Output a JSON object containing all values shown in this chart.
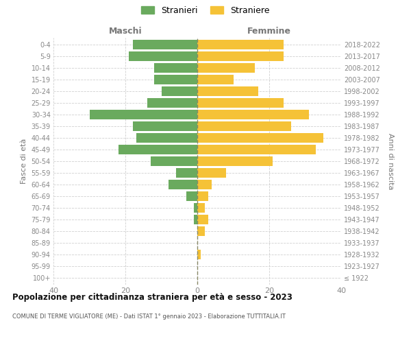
{
  "age_groups": [
    "100+",
    "95-99",
    "90-94",
    "85-89",
    "80-84",
    "75-79",
    "70-74",
    "65-69",
    "60-64",
    "55-59",
    "50-54",
    "45-49",
    "40-44",
    "35-39",
    "30-34",
    "25-29",
    "20-24",
    "15-19",
    "10-14",
    "5-9",
    "0-4"
  ],
  "birth_years": [
    "≤ 1922",
    "1923-1927",
    "1928-1932",
    "1933-1937",
    "1938-1942",
    "1943-1947",
    "1948-1952",
    "1953-1957",
    "1958-1962",
    "1963-1967",
    "1968-1972",
    "1973-1977",
    "1978-1982",
    "1983-1987",
    "1988-1992",
    "1993-1997",
    "1998-2002",
    "2003-2007",
    "2008-2012",
    "2013-2017",
    "2018-2022"
  ],
  "maschi": [
    0,
    0,
    0,
    0,
    0,
    1,
    1,
    3,
    8,
    6,
    13,
    22,
    17,
    18,
    30,
    14,
    10,
    12,
    12,
    19,
    18
  ],
  "femmine": [
    0,
    0,
    1,
    0,
    2,
    3,
    2,
    3,
    4,
    8,
    21,
    33,
    35,
    26,
    31,
    24,
    17,
    10,
    16,
    24,
    24
  ],
  "maschi_color": "#6aaa5e",
  "femmine_color": "#f5c237",
  "title": "Popolazione per cittadinanza straniera per età e sesso - 2023",
  "subtitle": "COMUNE DI TERME VIGLIATORE (ME) - Dati ISTAT 1° gennaio 2023 - Elaborazione TUTTITALIA.IT",
  "xlabel_left": "Maschi",
  "xlabel_right": "Femmine",
  "ylabel_left": "Fasce di età",
  "ylabel_right": "Anni di nascita",
  "legend_maschi": "Stranieri",
  "legend_femmine": "Straniere",
  "xlim": 40,
  "background_color": "#ffffff",
  "grid_color": "#d0d0d0"
}
